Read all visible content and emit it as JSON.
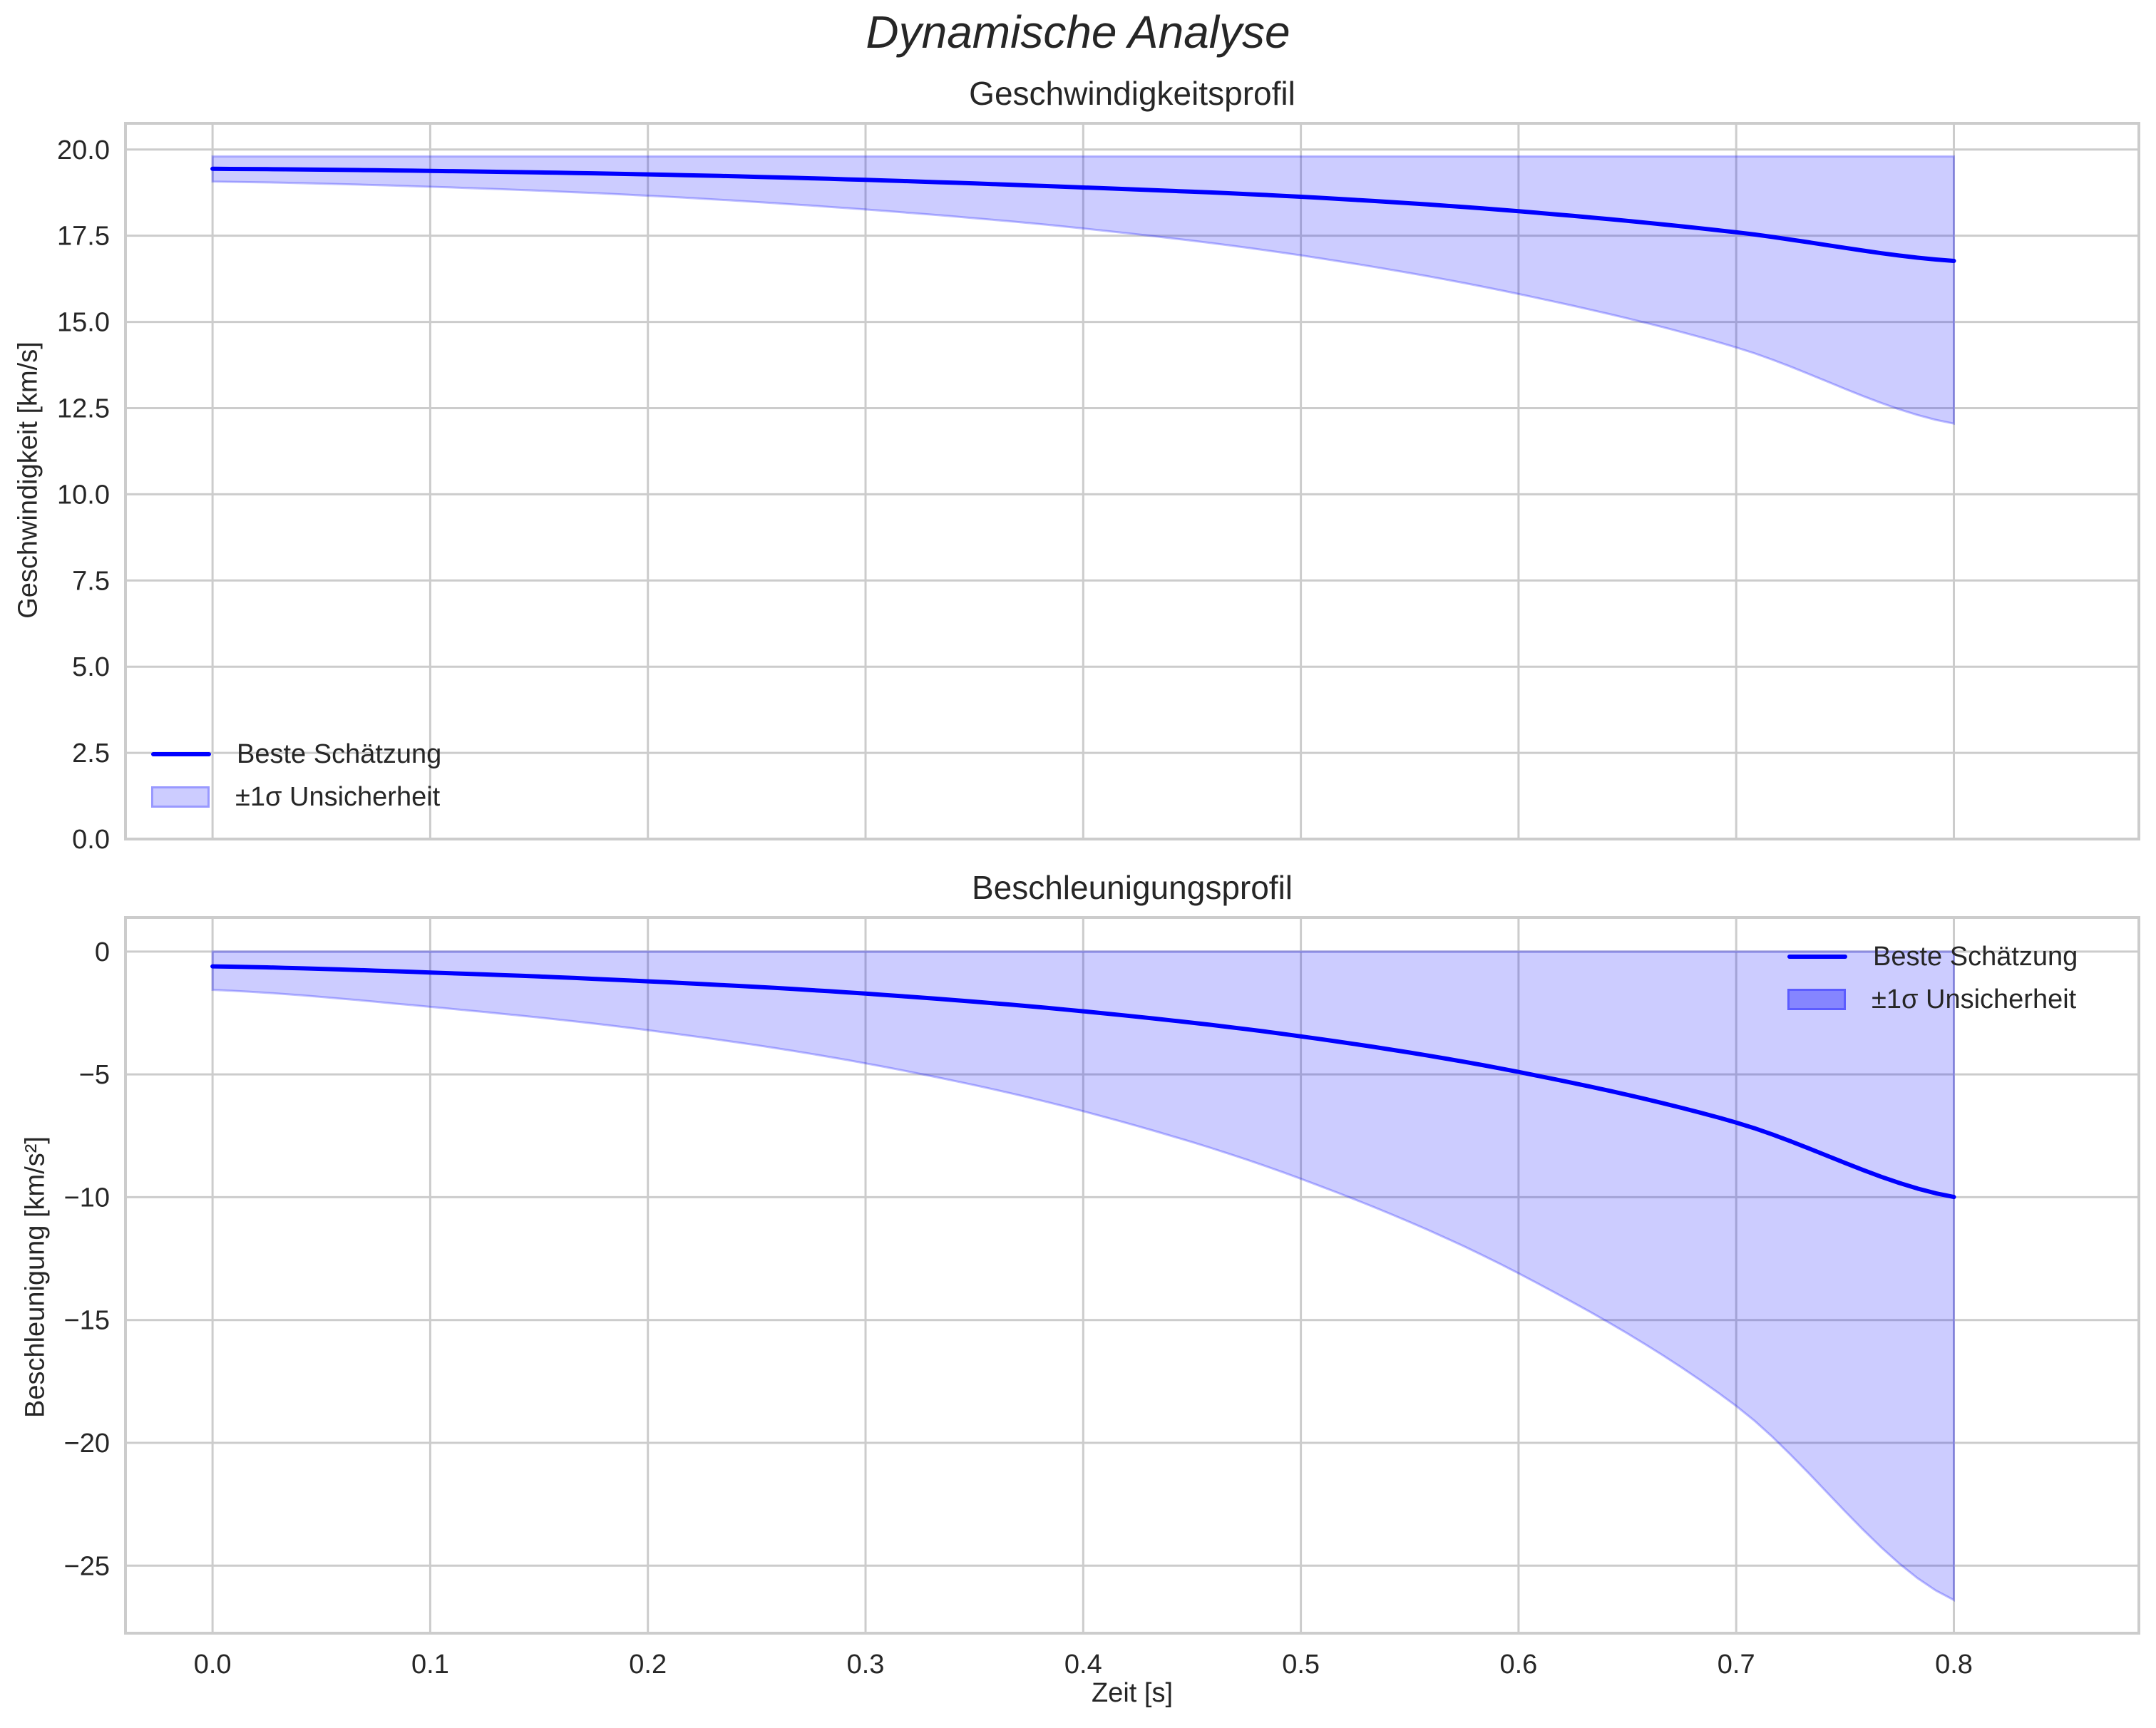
{
  "figure": {
    "title": "Dynamische Analyse"
  },
  "colors": {
    "line": "#0000ff",
    "band_fill": "#0000ff",
    "band_alpha": 0.2,
    "grid": "#cccccc",
    "text": "#262626"
  },
  "chart_data": [
    {
      "type": "line",
      "title": "Geschwindigkeitsprofil",
      "xlabel": "",
      "ylabel": "Geschwindigkeit [km/s]",
      "x": [
        0.0,
        0.1,
        0.2,
        0.3,
        0.4,
        0.5,
        0.6,
        0.7,
        0.8
      ],
      "xlim": [
        -0.04,
        0.885
      ],
      "ylim": [
        0,
        20.76
      ],
      "xticks": [
        "0.0",
        "0.1",
        "0.2",
        "0.3",
        "0.4",
        "0.5",
        "0.6",
        "0.7",
        "0.8"
      ],
      "yticks": [
        0.0,
        2.5,
        5.0,
        7.5,
        10.0,
        12.5,
        15.0,
        17.5,
        20.0
      ],
      "ytick_labels": [
        "0.0",
        "2.5",
        "5.0",
        "7.5",
        "10.0",
        "12.5",
        "15.0",
        "17.5",
        "20.0"
      ],
      "show_xtick_labels": false,
      "grid": true,
      "series": [
        {
          "name": "Beste Schätzung",
          "kind": "line",
          "values": [
            19.44,
            19.38,
            19.28,
            19.12,
            18.9,
            18.63,
            18.21,
            17.6,
            16.77
          ]
        }
      ],
      "band": {
        "name": "±1σ Unsicherheit",
        "upper": [
          19.8,
          19.8,
          19.8,
          19.8,
          19.8,
          19.8,
          19.8,
          19.8,
          19.8
        ],
        "lower": [
          19.07,
          18.92,
          18.66,
          18.26,
          17.71,
          16.93,
          15.81,
          14.26,
          12.05
        ]
      },
      "legend": {
        "position": "lower left",
        "entries": [
          "Beste Schätzung",
          "±1σ Unsicherheit"
        ]
      }
    },
    {
      "type": "line",
      "title": "Beschleunigungsprofil",
      "xlabel": "Zeit [s]",
      "ylabel": "Beschleunigung [km/s²]",
      "x": [
        0.0,
        0.1,
        0.2,
        0.3,
        0.4,
        0.5,
        0.6,
        0.7,
        0.8
      ],
      "xlim": [
        -0.04,
        0.885
      ],
      "ylim": [
        -27.75,
        1.39
      ],
      "xticks": [
        "0.0",
        "0.1",
        "0.2",
        "0.3",
        "0.4",
        "0.5",
        "0.6",
        "0.7",
        "0.8"
      ],
      "yticks": [
        0,
        -5,
        -10,
        -15,
        -20,
        -25
      ],
      "ytick_labels": [
        "0",
        "−5",
        "−10",
        "−15",
        "−20",
        "−25"
      ],
      "show_xtick_labels": true,
      "grid": true,
      "series": [
        {
          "name": "Beste Schätzung",
          "kind": "line",
          "values": [
            -0.6,
            -0.85,
            -1.21,
            -1.71,
            -2.43,
            -3.45,
            -4.9,
            -6.96,
            -9.99
          ]
        }
      ],
      "band": {
        "name": "±1σ Unsicherheit",
        "upper": [
          0,
          0,
          0,
          0,
          0,
          0,
          0,
          0,
          0
        ],
        "lower": [
          -1.56,
          -2.25,
          -3.2,
          -4.55,
          -6.5,
          -9.25,
          -13.1,
          -18.5,
          -26.4
        ]
      },
      "legend": {
        "position": "upper right",
        "entries": [
          "Beste Schätzung",
          "±1σ Unsicherheit"
        ]
      }
    }
  ]
}
